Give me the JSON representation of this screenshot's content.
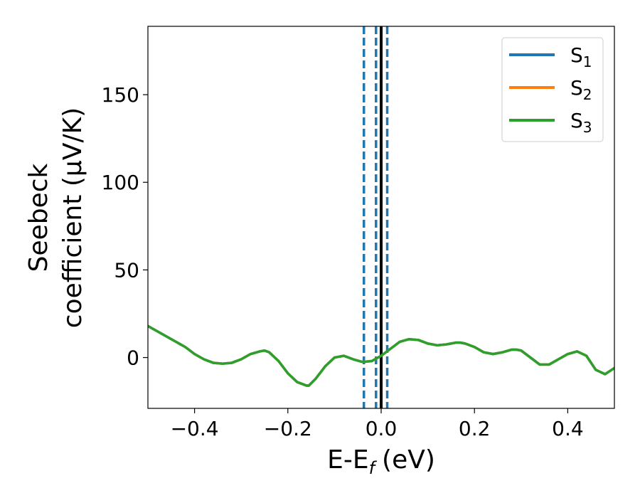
{
  "chart_data": {
    "type": "line",
    "xlabel": "E-E",
    "xlabel_sub": "f",
    "xlabel_unit": "(eV)",
    "ylabel_line1": "Seebeck",
    "ylabel_line2": "coefficient  (μV/K)",
    "xlim": [
      -0.5,
      0.5
    ],
    "ylim": [
      -29,
      189
    ],
    "x_ticks": [
      -0.4,
      -0.2,
      0.0,
      0.2,
      0.4
    ],
    "x_tick_labels": [
      "−0.4",
      "−0.2",
      "0.0",
      "0.2",
      "0.4"
    ],
    "y_ticks": [
      0,
      50,
      100,
      150
    ],
    "y_tick_labels": [
      "0",
      "50",
      "100",
      "150"
    ],
    "legend_position": "top-right",
    "series": [
      {
        "name": "S",
        "sub": "1",
        "color": "#1f77b4",
        "x": [
          -0.5,
          -0.48,
          -0.46,
          -0.44,
          -0.42,
          -0.4,
          -0.38,
          -0.36,
          -0.34,
          -0.32,
          -0.3,
          -0.28,
          -0.26,
          -0.25,
          -0.24,
          -0.22,
          -0.2,
          -0.18,
          -0.16,
          -0.155,
          -0.14,
          -0.12,
          -0.1,
          -0.08,
          -0.06,
          -0.04,
          -0.02,
          0.0,
          0.02,
          0.04,
          0.06,
          0.08,
          0.1,
          0.12,
          0.14,
          0.16,
          0.17,
          0.18,
          0.2,
          0.22,
          0.24,
          0.26,
          0.28,
          0.29,
          0.3,
          0.32,
          0.34,
          0.36,
          0.38,
          0.4,
          0.42,
          0.44,
          0.46,
          0.48,
          0.5
        ],
        "y": [
          18,
          15,
          12,
          9,
          6,
          2,
          -1,
          -3,
          -3.5,
          -3,
          -1,
          2,
          3.5,
          4,
          3,
          -2,
          -9,
          -14,
          -16,
          -16,
          -12,
          -5,
          0,
          1,
          -1,
          -2.5,
          -2,
          1,
          5,
          9,
          10.5,
          10,
          8,
          7,
          7.5,
          8.5,
          8.5,
          8,
          6,
          3,
          2,
          3,
          4.5,
          4.5,
          4,
          0,
          -4,
          -4,
          -1,
          2,
          3.5,
          1,
          -7,
          -9.5,
          -6
        ]
      },
      {
        "name": "S",
        "sub": "2",
        "color": "#ff7f0e",
        "x": [
          -0.5,
          -0.48,
          -0.46,
          -0.44,
          -0.42,
          -0.4,
          -0.38,
          -0.36,
          -0.34,
          -0.32,
          -0.3,
          -0.28,
          -0.26,
          -0.25,
          -0.24,
          -0.22,
          -0.2,
          -0.18,
          -0.16,
          -0.155,
          -0.14,
          -0.12,
          -0.1,
          -0.08,
          -0.06,
          -0.04,
          -0.02,
          0.0,
          0.02,
          0.04,
          0.06,
          0.08,
          0.1,
          0.12,
          0.14,
          0.16,
          0.17,
          0.18,
          0.2,
          0.22,
          0.24,
          0.26,
          0.28,
          0.29,
          0.3,
          0.32,
          0.34,
          0.36,
          0.38,
          0.4,
          0.42,
          0.44,
          0.46,
          0.48,
          0.5
        ],
        "y": [
          18,
          15,
          12,
          9,
          6,
          2,
          -1,
          -3,
          -3.5,
          -3,
          -1,
          2,
          3.5,
          4,
          3,
          -2,
          -9,
          -14,
          -16,
          -16,
          -12,
          -5,
          0,
          1,
          -1,
          -2.5,
          -2,
          1,
          5,
          9,
          10.5,
          10,
          8,
          7,
          7.5,
          8.5,
          8.5,
          8,
          6,
          3,
          2,
          3,
          4.5,
          4.5,
          4,
          0,
          -4,
          -4,
          -1,
          2,
          3.5,
          1,
          -7,
          -9.5,
          -6
        ]
      },
      {
        "name": "S",
        "sub": "3",
        "color": "#2ca02c",
        "x": [
          -0.5,
          -0.48,
          -0.46,
          -0.44,
          -0.42,
          -0.4,
          -0.38,
          -0.36,
          -0.34,
          -0.32,
          -0.3,
          -0.28,
          -0.26,
          -0.25,
          -0.24,
          -0.22,
          -0.2,
          -0.18,
          -0.16,
          -0.155,
          -0.14,
          -0.12,
          -0.1,
          -0.08,
          -0.06,
          -0.04,
          -0.02,
          0.0,
          0.02,
          0.04,
          0.06,
          0.08,
          0.1,
          0.12,
          0.14,
          0.16,
          0.17,
          0.18,
          0.2,
          0.22,
          0.24,
          0.26,
          0.28,
          0.29,
          0.3,
          0.32,
          0.34,
          0.36,
          0.38,
          0.4,
          0.42,
          0.44,
          0.46,
          0.48,
          0.5
        ],
        "y": [
          18,
          15,
          12,
          9,
          6,
          2,
          -1,
          -3,
          -3.5,
          -3,
          -1,
          2,
          3.5,
          4,
          3,
          -2,
          -9,
          -14,
          -16,
          -16,
          -12,
          -5,
          0,
          1,
          -1,
          -2.5,
          -2,
          1,
          5,
          9,
          10.5,
          10,
          8,
          7,
          7.5,
          8.5,
          8.5,
          8,
          6,
          3,
          2,
          3,
          4.5,
          4.5,
          4,
          0,
          -4,
          -4,
          -1,
          2,
          3.5,
          1,
          -7,
          -9.5,
          -6
        ]
      }
    ],
    "vertical_lines": [
      {
        "x": -0.037,
        "color": "#1f77b4",
        "style": "dashed"
      },
      {
        "x": -0.011,
        "color": "#1f77b4",
        "style": "dashed"
      },
      {
        "x": 0.0,
        "color": "#000000",
        "style": "solid"
      },
      {
        "x": 0.013,
        "color": "#1f77b4",
        "style": "dashed"
      }
    ]
  }
}
